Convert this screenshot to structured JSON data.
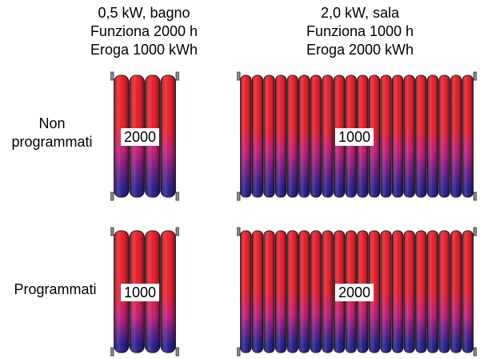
{
  "columns": [
    {
      "power": "0,5 kW, bagno",
      "hours": "Funziona 2000 h",
      "energy": "Eroga 1000 kWh"
    },
    {
      "power": "2,0 kW, sala",
      "hours": "Funziona 1000 h",
      "energy": "Eroga 2000 kWh"
    }
  ],
  "rows": [
    {
      "label_line1": "Non",
      "label_line2": "programmati",
      "small_hours": "2000",
      "large_hours": "1000"
    },
    {
      "label_line1": "Programmati",
      "label_line2": "",
      "small_hours": "1000",
      "large_hours": "2000"
    }
  ],
  "colors": {
    "hot": "#e8222e",
    "mid": "#c4207a",
    "cold": "#2a2190",
    "pipe": "#8a8a8a"
  }
}
